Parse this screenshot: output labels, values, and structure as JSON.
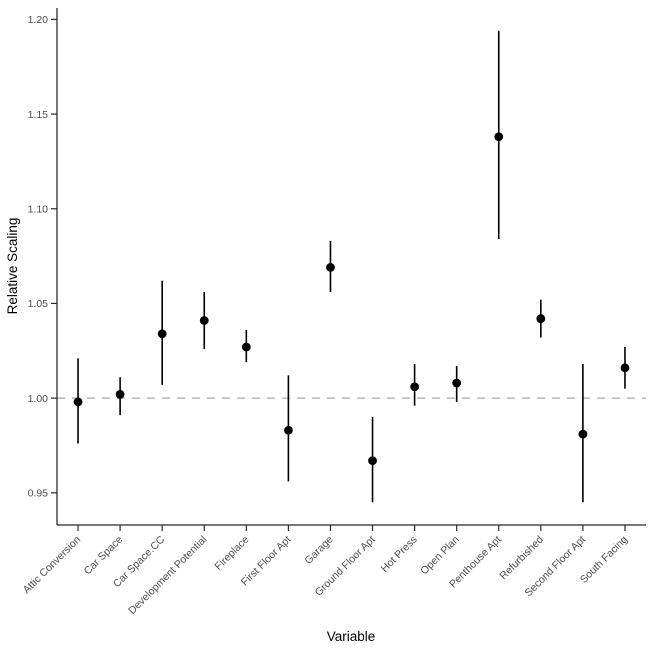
{
  "chart_data": {
    "type": "scatter",
    "variant": "point-range",
    "title": "",
    "xlabel": "Variable",
    "ylabel": "Relative Scaling",
    "grid": "off",
    "legend": "none",
    "background": "#ffffff",
    "point_color": "#000000",
    "axis_color": "#2b2b2b",
    "tick_label_color": "#4d4d4d",
    "reference_line": {
      "y": 1.0,
      "style": "dashed",
      "color": "#aaaaaa"
    },
    "ylim": [
      0.933,
      1.206
    ],
    "y_ticks": [
      0.95,
      1.0,
      1.05,
      1.1,
      1.15,
      1.2
    ],
    "y_tick_labels": [
      "0.95",
      "1.00",
      "1.05",
      "1.10",
      "1.15",
      "1.20"
    ],
    "categories": [
      "Attic Conversion",
      "Car Space",
      "Car Space.CC",
      "Development Potential",
      "Fireplace",
      "First Floor Apt",
      "Garage",
      "Ground Floor Apt",
      "Hot Press",
      "Open Plan",
      "Penthouse Apt",
      "Refurbished",
      "Second Floor Apt",
      "South Facing"
    ],
    "points": [
      {
        "label": "Attic Conversion",
        "estimate": 0.998,
        "lower": 0.976,
        "upper": 1.021
      },
      {
        "label": "Car Space",
        "estimate": 1.002,
        "lower": 0.991,
        "upper": 1.011
      },
      {
        "label": "Car Space.CC",
        "estimate": 1.034,
        "lower": 1.007,
        "upper": 1.062
      },
      {
        "label": "Development Potential",
        "estimate": 1.041,
        "lower": 1.026,
        "upper": 1.056
      },
      {
        "label": "Fireplace",
        "estimate": 1.027,
        "lower": 1.019,
        "upper": 1.036
      },
      {
        "label": "First Floor Apt",
        "estimate": 0.983,
        "lower": 0.956,
        "upper": 1.012
      },
      {
        "label": "Garage",
        "estimate": 1.069,
        "lower": 1.056,
        "upper": 1.083
      },
      {
        "label": "Ground Floor Apt",
        "estimate": 0.967,
        "lower": 0.945,
        "upper": 0.99
      },
      {
        "label": "Hot Press",
        "estimate": 1.006,
        "lower": 0.996,
        "upper": 1.018
      },
      {
        "label": "Open Plan",
        "estimate": 1.008,
        "lower": 0.998,
        "upper": 1.017
      },
      {
        "label": "Penthouse Apt",
        "estimate": 1.138,
        "lower": 1.084,
        "upper": 1.194
      },
      {
        "label": "Refurbished",
        "estimate": 1.042,
        "lower": 1.032,
        "upper": 1.052
      },
      {
        "label": "Second Floor Apt",
        "estimate": 0.981,
        "lower": 0.945,
        "upper": 1.018
      },
      {
        "label": "South Facing",
        "estimate": 1.016,
        "lower": 1.005,
        "upper": 1.027
      }
    ]
  }
}
